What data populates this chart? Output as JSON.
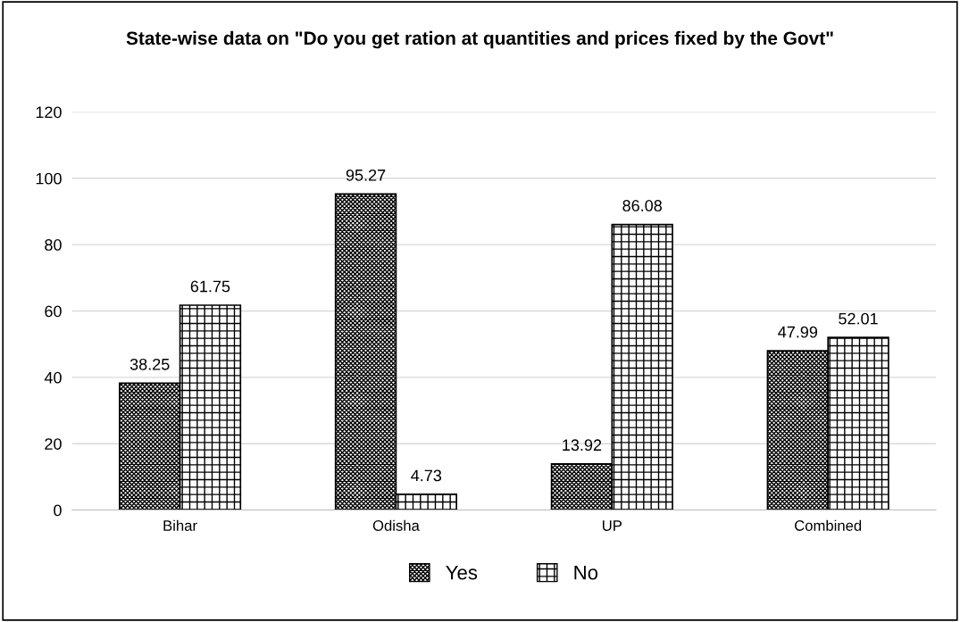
{
  "chart_data": {
    "type": "bar",
    "title": "State-wise data on \"Do you get ration at quantities and prices fixed by the Govt\"",
    "categories": [
      "Bihar",
      "Odisha",
      "UP",
      "Combined"
    ],
    "series": [
      {
        "name": "Yes",
        "color": "#000000",
        "values": [
          38.25,
          95.27,
          13.92,
          47.99
        ]
      },
      {
        "name": "No",
        "color": "#000000",
        "values": [
          61.75,
          4.73,
          86.08,
          52.01
        ]
      }
    ],
    "ylim": [
      0,
      120
    ],
    "yticks": [
      0,
      20,
      40,
      60,
      80,
      100,
      120
    ],
    "grid": "y",
    "legend": "bottom",
    "data_labels": true
  }
}
